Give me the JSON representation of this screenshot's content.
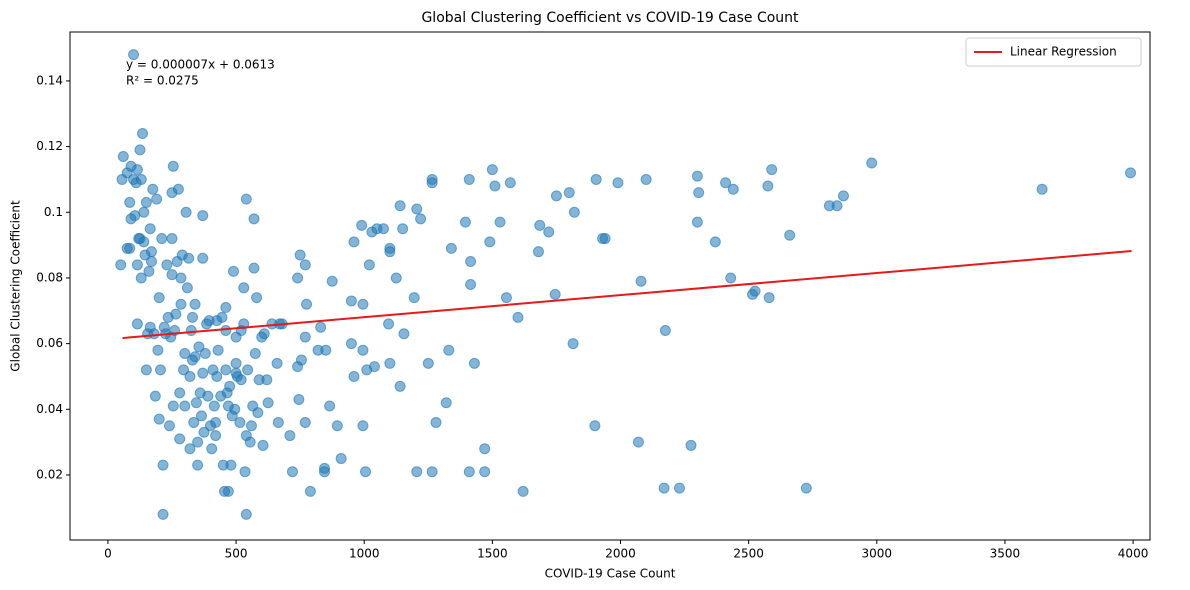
{
  "chart_data": {
    "type": "scatter",
    "title": "Global Clustering Coefficient vs COVID-19 Case Count",
    "x_label": "COVID-19 Case Count",
    "y_label": "Global Clustering Coefficient",
    "annotation": [
      "y = 0.000007x + 0.0613",
      "R² = 0.0275"
    ],
    "xlim": [
      -148,
      4066
    ],
    "ylim": [
      0.0002,
      0.1549
    ],
    "xticks": [
      0,
      500,
      1000,
      1500,
      2000,
      2500,
      3000,
      3500,
      4000
    ],
    "yticks": [
      0.02,
      0.04,
      0.06,
      0.08,
      0.1,
      0.12,
      0.14
    ],
    "legend": "upper right",
    "series": [
      {
        "color": "#1f77b4",
        "x": [
          3990,
          3645,
          2980,
          2870,
          2845,
          2815,
          2725,
          2660,
          2590,
          2575,
          2580,
          2525,
          2515,
          2430,
          2440,
          2410,
          2370,
          2300,
          2305,
          2300,
          2275,
          2230,
          2170,
          2175,
          2080,
          2070,
          2100,
          1990,
          1940,
          1930,
          1905,
          1900,
          1820,
          1815,
          1800,
          1750,
          1745,
          1720,
          1685,
          1680,
          1620,
          1600,
          1570,
          1555,
          1530,
          1510,
          1500,
          1490,
          1470,
          1470,
          1430,
          1415,
          1415,
          1410,
          1410,
          1395,
          1340,
          1330,
          1320,
          1280,
          1265,
          1265,
          1265,
          1250,
          1220,
          1205,
          1205,
          1195,
          1155,
          1150,
          1140,
          1140,
          1125,
          1100,
          1100,
          1100,
          1095,
          1075,
          1050,
          1040,
          1030,
          1020,
          1010,
          1005,
          995,
          995,
          995,
          990,
          960,
          960,
          950,
          950,
          910,
          895,
          875,
          865,
          850,
          845,
          845,
          830,
          820,
          790,
          770,
          770,
          770,
          775,
          755,
          750,
          745,
          740,
          740,
          720,
          710,
          680,
          670,
          665,
          660,
          640,
          625,
          620,
          610,
          605,
          600,
          590,
          585,
          580,
          575,
          570,
          570,
          565,
          560,
          555,
          545,
          540,
          540,
          530,
          535,
          530,
          540,
          520,
          520,
          515,
          505,
          500,
          500,
          500,
          495,
          490,
          485,
          480,
          475,
          470,
          470,
          465,
          460,
          460,
          460,
          455,
          450,
          445,
          440,
          430,
          425,
          425,
          420,
          420,
          415,
          410,
          405,
          400,
          395,
          390,
          385,
          380,
          375,
          370,
          370,
          370,
          365,
          360,
          355,
          350,
          350,
          345,
          340,
          340,
          335,
          330,
          330,
          325,
          320,
          320,
          315,
          310,
          305,
          300,
          300,
          295,
          290,
          285,
          285,
          280,
          280,
          275,
          270,
          265,
          260,
          255,
          255,
          250,
          250,
          250,
          245,
          240,
          235,
          230,
          225,
          220,
          215,
          215,
          210,
          205,
          200,
          200,
          195,
          190,
          185,
          180,
          175,
          170,
          170,
          165,
          165,
          160,
          155,
          150,
          150,
          145,
          140,
          140,
          135,
          130,
          130,
          125,
          125,
          120,
          115,
          115,
          115,
          110,
          105,
          100,
          100,
          90,
          90,
          85,
          85,
          75,
          75,
          60,
          55,
          50
        ],
        "values": [
          0.112,
          0.107,
          0.115,
          0.105,
          0.102,
          0.102,
          0.016,
          0.093,
          0.113,
          0.108,
          0.074,
          0.076,
          0.075,
          0.08,
          0.107,
          0.109,
          0.091,
          0.111,
          0.106,
          0.097,
          0.029,
          0.016,
          0.016,
          0.064,
          0.079,
          0.03,
          0.11,
          0.109,
          0.092,
          0.092,
          0.11,
          0.035,
          0.1,
          0.06,
          0.106,
          0.105,
          0.075,
          0.094,
          0.096,
          0.088,
          0.015,
          0.068,
          0.109,
          0.074,
          0.097,
          0.108,
          0.113,
          0.091,
          0.028,
          0.021,
          0.054,
          0.078,
          0.085,
          0.11,
          0.021,
          0.097,
          0.089,
          0.058,
          0.042,
          0.036,
          0.11,
          0.109,
          0.021,
          0.054,
          0.098,
          0.101,
          0.021,
          0.074,
          0.063,
          0.095,
          0.102,
          0.047,
          0.08,
          0.089,
          0.088,
          0.054,
          0.066,
          0.095,
          0.095,
          0.053,
          0.094,
          0.084,
          0.052,
          0.021,
          0.058,
          0.072,
          0.035,
          0.096,
          0.05,
          0.091,
          0.073,
          0.06,
          0.025,
          0.035,
          0.079,
          0.041,
          0.058,
          0.022,
          0.021,
          0.065,
          0.058,
          0.015,
          0.036,
          0.062,
          0.084,
          0.072,
          0.055,
          0.087,
          0.043,
          0.08,
          0.053,
          0.021,
          0.032,
          0.066,
          0.066,
          0.036,
          0.054,
          0.066,
          0.042,
          0.049,
          0.063,
          0.029,
          0.062,
          0.049,
          0.039,
          0.074,
          0.057,
          0.098,
          0.083,
          0.041,
          0.035,
          0.03,
          0.052,
          0.104,
          0.032,
          0.077,
          0.021,
          0.066,
          0.008,
          0.049,
          0.064,
          0.036,
          0.05,
          0.051,
          0.062,
          0.054,
          0.04,
          0.082,
          0.038,
          0.023,
          0.047,
          0.015,
          0.041,
          0.045,
          0.052,
          0.071,
          0.064,
          0.015,
          0.023,
          0.068,
          0.044,
          0.058,
          0.067,
          0.05,
          0.032,
          0.036,
          0.041,
          0.052,
          0.028,
          0.035,
          0.067,
          0.044,
          0.066,
          0.057,
          0.033,
          0.099,
          0.086,
          0.051,
          0.038,
          0.045,
          0.059,
          0.023,
          0.03,
          0.042,
          0.072,
          0.056,
          0.036,
          0.055,
          0.068,
          0.064,
          0.028,
          0.05,
          0.086,
          0.077,
          0.1,
          0.041,
          0.057,
          0.052,
          0.087,
          0.08,
          0.072,
          0.045,
          0.031,
          0.107,
          0.085,
          0.069,
          0.064,
          0.114,
          0.041,
          0.106,
          0.092,
          0.081,
          0.062,
          0.035,
          0.068,
          0.084,
          0.063,
          0.065,
          0.023,
          0.008,
          0.092,
          0.052,
          0.074,
          0.037,
          0.058,
          0.104,
          0.044,
          0.063,
          0.107,
          0.085,
          0.088,
          0.095,
          0.065,
          0.082,
          0.063,
          0.103,
          0.052,
          0.087,
          0.1,
          0.091,
          0.124,
          0.11,
          0.08,
          0.119,
          0.092,
          0.092,
          0.113,
          0.084,
          0.066,
          0.109,
          0.099,
          0.148,
          0.11,
          0.114,
          0.098,
          0.103,
          0.089,
          0.112,
          0.089,
          0.117,
          0.11,
          0.084
        ]
      },
      {
        "name": "Linear Regression",
        "type": "line",
        "color": "#e41a1c",
        "x": [
          57,
          3994
        ],
        "values": [
          0.0617,
          0.0882
        ]
      }
    ]
  }
}
